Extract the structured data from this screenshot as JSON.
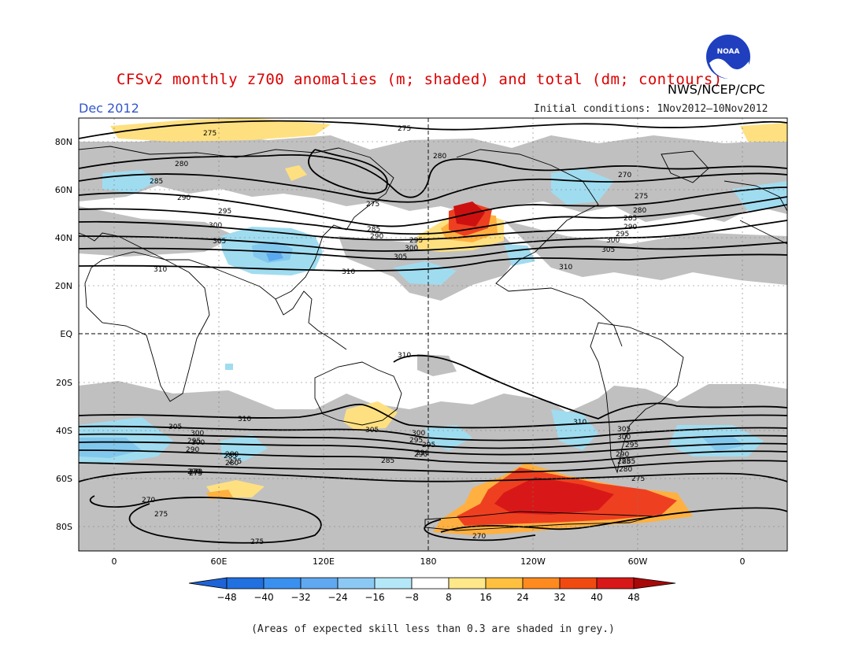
{
  "header": {
    "title": "CFSv2 monthly z700 anomalies (m; shaded) and total (dm; contours)",
    "org": "NWS/NCEP/CPC",
    "month": "Dec 2012",
    "initial_conditions": "Initial conditions: 1Nov2012–10Nov2012",
    "logo_text": "NOAA"
  },
  "map": {
    "lat_ticks": [
      "80N",
      "60N",
      "40N",
      "20N",
      "EQ",
      "20S",
      "40S",
      "60S",
      "80S"
    ],
    "lon_ticks": [
      "0",
      "60E",
      "120E",
      "180",
      "120W",
      "60W",
      "0"
    ],
    "contour_labels": [
      "275",
      "275",
      "280",
      "280",
      "285",
      "290",
      "295",
      "300",
      "305",
      "310",
      "275",
      "285",
      "290",
      "295",
      "300",
      "305",
      "310",
      "270",
      "275",
      "280",
      "285",
      "290",
      "295",
      "300",
      "305",
      "310",
      "310",
      "310",
      "305",
      "300",
      "295",
      "290",
      "285",
      "280",
      "275",
      "270",
      "270",
      "275",
      "275",
      "310",
      "305",
      "300",
      "295",
      "290",
      "285",
      "280",
      "275",
      "270",
      "300",
      "295",
      "290",
      "285",
      "305",
      "300",
      "295",
      "290",
      "285",
      "280",
      "275",
      "270"
    ],
    "colors": {
      "grey": "#c0c0c0",
      "land_line": "#000000",
      "neg_light": "#a0dcf0",
      "neg_mid": "#82c8ee",
      "pos_light": "#ffe080",
      "pos_mid": "#ffb040",
      "pos_strong": "#ee4020",
      "pos_max": "#cc1010"
    }
  },
  "colorbar": {
    "labels": [
      "−48",
      "−40",
      "−32",
      "−24",
      "−16",
      "−8",
      "8",
      "16",
      "24",
      "32",
      "40",
      "48"
    ],
    "colors": [
      "#2070e0",
      "#3a90ee",
      "#60a8f0",
      "#8cc8f4",
      "#b4e8f8",
      "#ffffff",
      "#ffe88a",
      "#ffc040",
      "#ff8a20",
      "#f04a10",
      "#d81818",
      "#a80808"
    ]
  },
  "footer": {
    "note": "(Areas of expected skill less than 0.3 are shaded in grey.)"
  }
}
